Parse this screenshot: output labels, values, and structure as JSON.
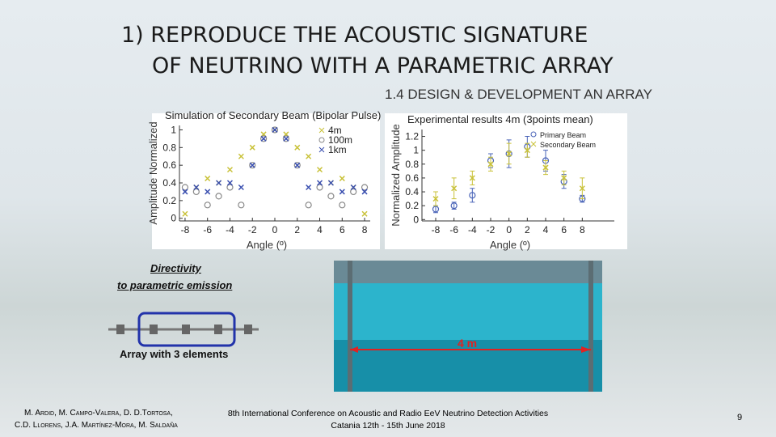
{
  "header": {
    "title_line1": "1)   REPRODUCE  THE ACOUSTIC SIGNATURE",
    "title_line2": "OF NEUTRINO WITH A PARAMETRIC ARRAY",
    "subtitle": "1.4 DESIGN & DEVELOPMENT AN ARRAY"
  },
  "chart_data": [
    {
      "type": "scatter",
      "title": "Simulation of Secondary Beam (Bipolar Pulse)",
      "x_label": "Angle (º)",
      "y_label": "Amplitude Normalized",
      "x": [
        -8,
        -7,
        -6,
        -5,
        -4,
        -3,
        -2,
        -1,
        0,
        1,
        2,
        3,
        4,
        5,
        6,
        7,
        8
      ],
      "series": [
        {
          "name": "4m",
          "color": "#c9c23a",
          "marker": "x",
          "values": [
            0.05,
            0.35,
            0.45,
            0.4,
            0.55,
            0.7,
            0.8,
            0.95,
            1,
            0.95,
            0.8,
            0.7,
            0.55,
            0.4,
            0.45,
            0.35,
            0.05
          ]
        },
        {
          "name": "100m",
          "color": "#8a8a8a",
          "marker": "o",
          "values": [
            0.35,
            0.3,
            0.15,
            0.25,
            0.35,
            0.15,
            0.6,
            0.9,
            1,
            0.9,
            0.6,
            0.15,
            0.35,
            0.25,
            0.15,
            0.3,
            0.35
          ]
        },
        {
          "name": "1km",
          "color": "#3a4fb0",
          "marker": "x",
          "values": [
            0.3,
            0.35,
            0.3,
            0.4,
            0.4,
            0.35,
            0.6,
            0.9,
            1,
            0.9,
            0.6,
            0.35,
            0.4,
            0.4,
            0.3,
            0.35,
            0.3
          ]
        }
      ],
      "xlim": [
        -8.5,
        8.5
      ],
      "ylim": [
        -0.03,
        1.05
      ],
      "xticks": [
        -8,
        -6,
        -4,
        -2,
        0,
        2,
        4,
        6,
        8
      ],
      "yticks": [
        0,
        0.2,
        0.4,
        0.6,
        0.8,
        1
      ],
      "legend": "top-right"
    },
    {
      "type": "scatter",
      "title": "Experimental results 4m (3points mean)",
      "x_label": "Angle (º)",
      "y_label": "Normalized Amplitude",
      "x": [
        -8,
        -6,
        -4,
        -2,
        0,
        2,
        4,
        6,
        8
      ],
      "series": [
        {
          "name": "Primary Beam",
          "color": "#4a64b8",
          "marker": "o",
          "values": [
            0.15,
            0.2,
            0.35,
            0.85,
            0.95,
            1.05,
            0.85,
            0.55,
            0.3
          ],
          "errors": [
            0.05,
            0.05,
            0.1,
            0.1,
            0.2,
            0.15,
            0.15,
            0.1,
            0.05
          ]
        },
        {
          "name": "Secondary Beam",
          "color": "#c9c23a",
          "marker": "x",
          "values": [
            0.3,
            0.45,
            0.6,
            0.8,
            0.95,
            1.0,
            0.75,
            0.6,
            0.45
          ],
          "errors": [
            0.1,
            0.15,
            0.1,
            0.1,
            0.15,
            0.1,
            0.1,
            0.1,
            0.15
          ]
        }
      ],
      "xlim": [
        -9.5,
        11.5
      ],
      "ylim": [
        -0.02,
        1.3
      ],
      "xticks": [
        -8,
        -6,
        -4,
        -2,
        0,
        2,
        4,
        6,
        8
      ],
      "yticks": [
        0,
        0.2,
        0.4,
        0.6,
        0.8,
        1,
        1.2
      ],
      "legend": "top-right"
    }
  ],
  "captions": {
    "directivity_line1": "Directivity",
    "directivity_line2": "to parametric emission",
    "array": "Array with 3 elements",
    "distance": "4 m"
  },
  "footer": {
    "authors_line1": "M. Ardid, M. Campo-Valera, D. D.Tortosa,",
    "authors_line2": "C.D. Llorens, J.A. Martínez-Mora, M. Saldaña",
    "conference_line1": "8th International Conference on Acoustic and Radio EeV Neutrino Detection Activities",
    "conference_line2": "Catania 12th - 15th June 2018",
    "page": "9"
  }
}
